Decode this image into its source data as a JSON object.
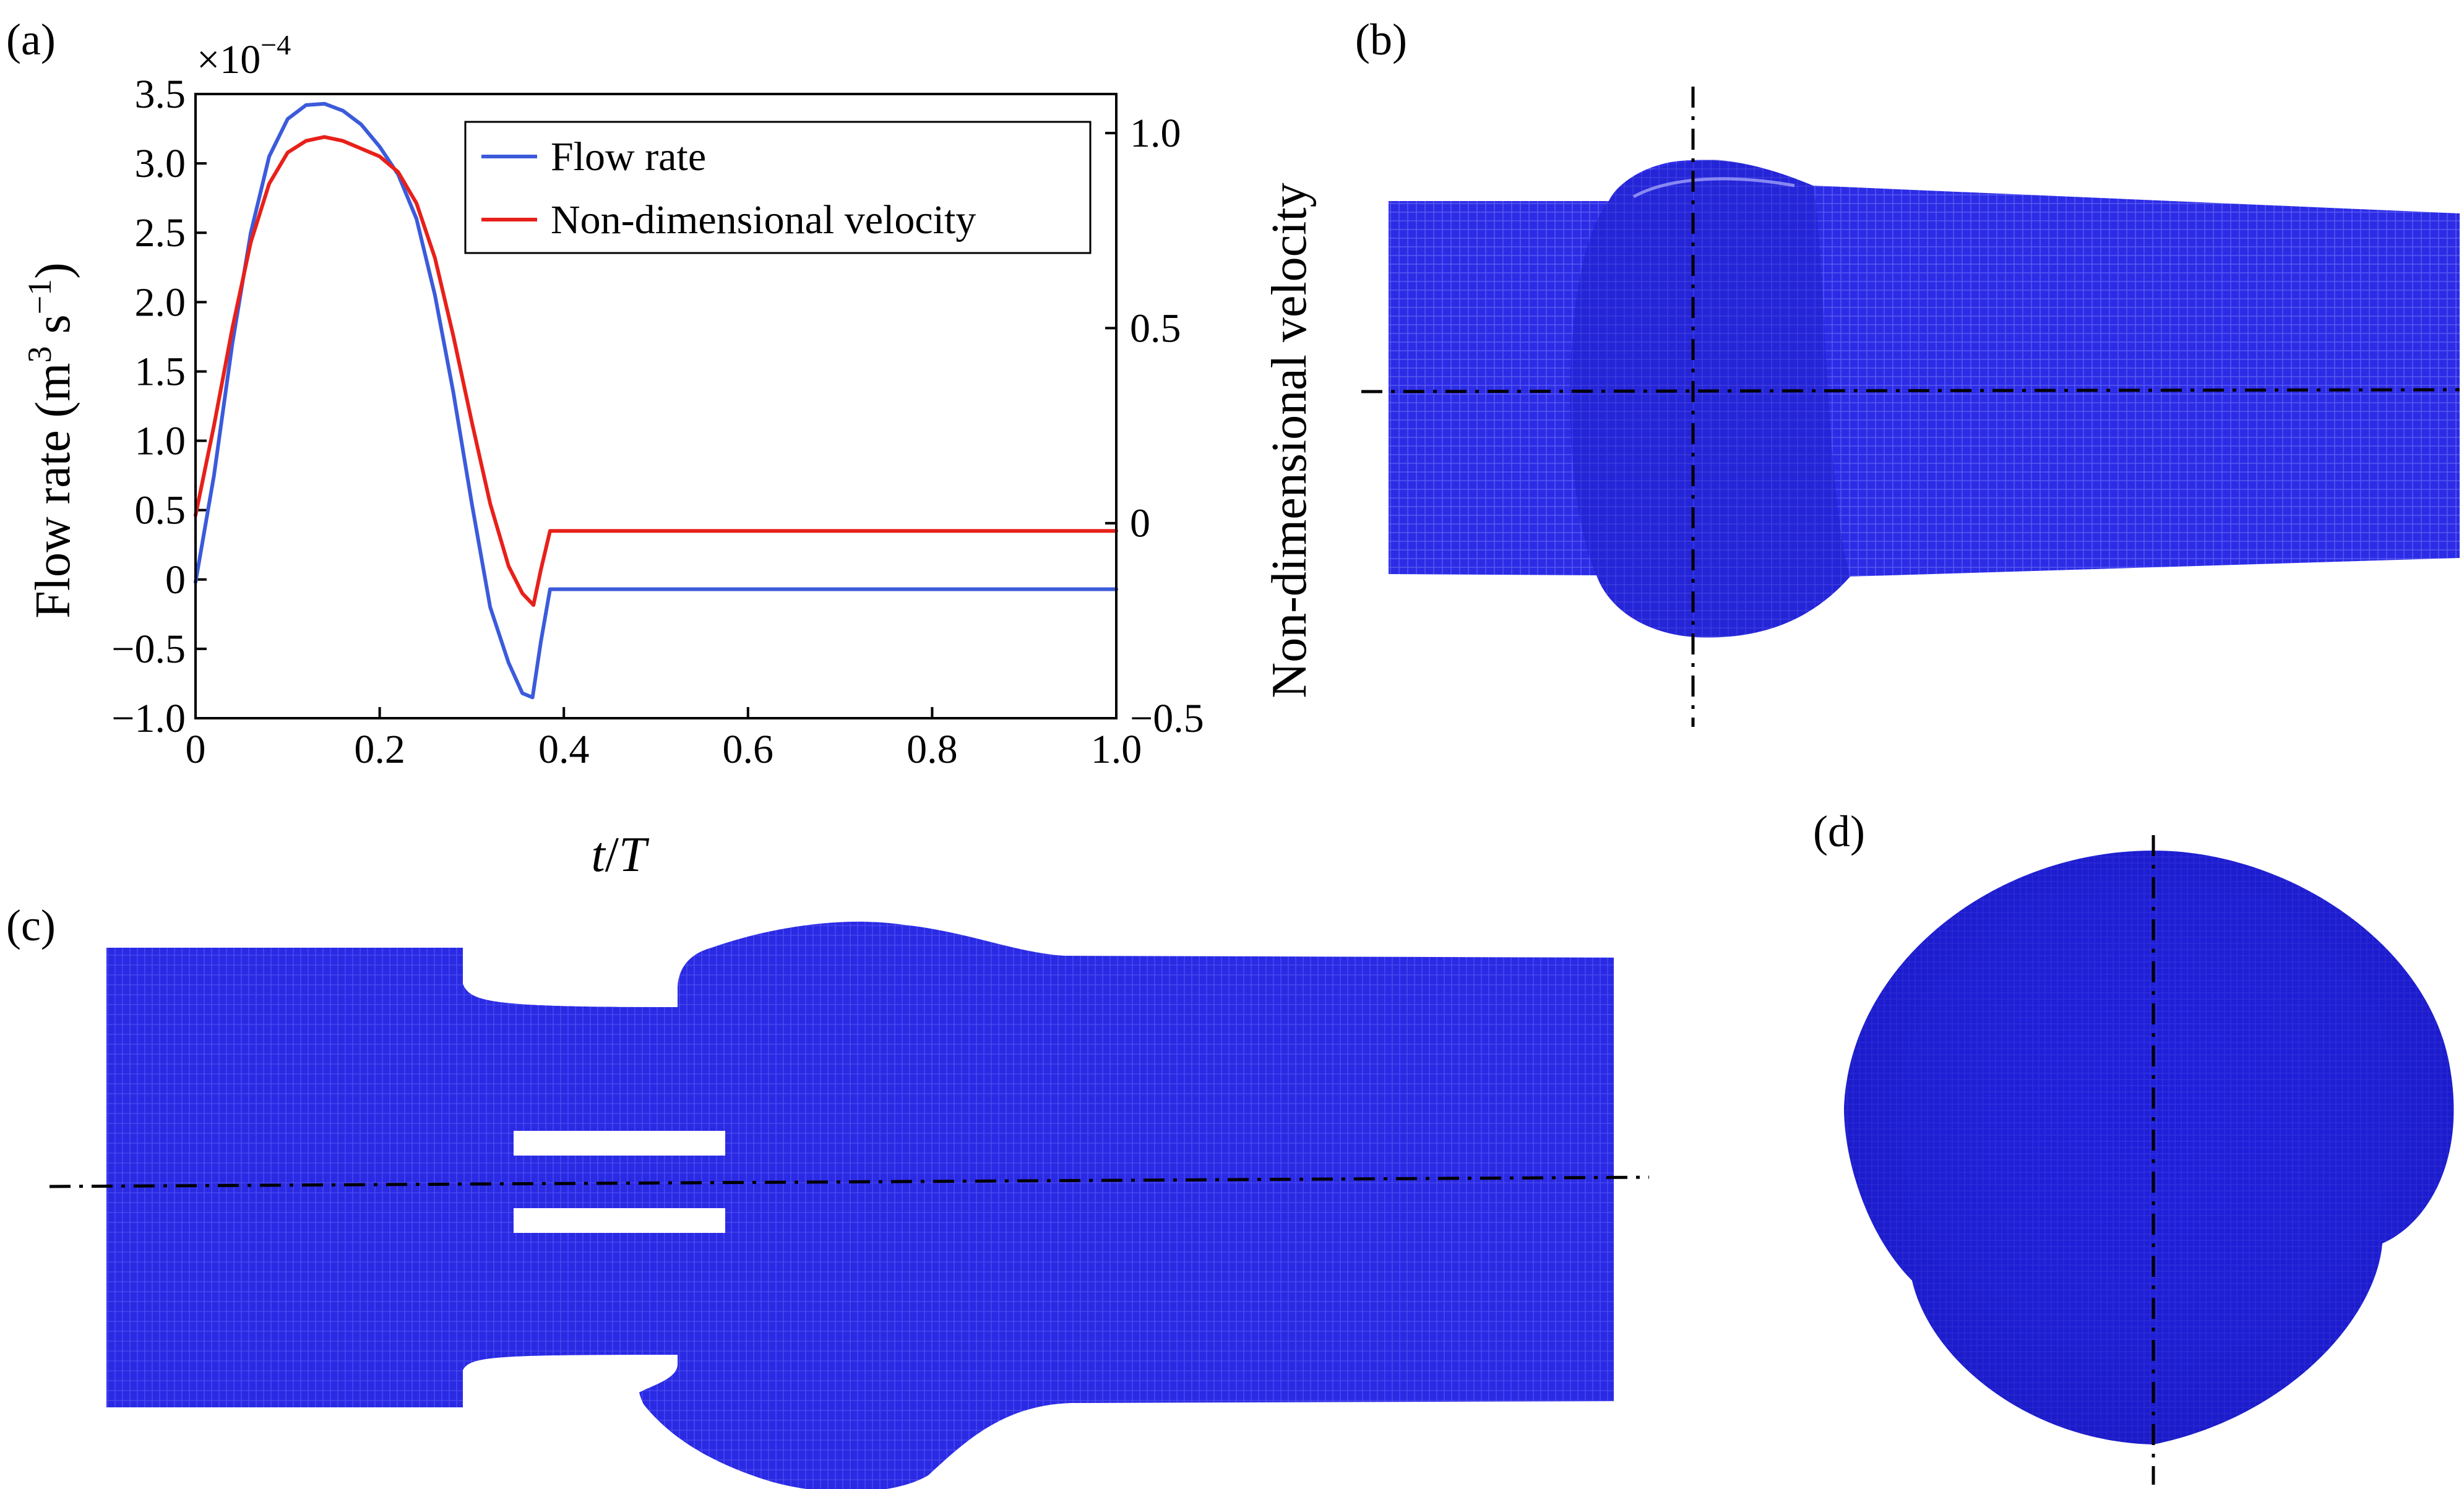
{
  "panels": {
    "a": {
      "label": "(a)"
    },
    "b": {
      "label": "(b)"
    },
    "c": {
      "label": "(c)"
    },
    "d": {
      "label": "(d)"
    }
  },
  "colors": {
    "flow_rate": "#3b5bdb",
    "velocity": "#e8201a",
    "mesh": "#2424e0"
  },
  "chart_data": {
    "type": "line",
    "xlabel_t": "t",
    "xlabel_sep": "/",
    "xlabel_T": "T",
    "ylabel_left_pre": "Flow rate (m",
    "ylabel_left_exp1": "3",
    "ylabel_left_mid": " s",
    "ylabel_left_exp2": "−1",
    "ylabel_left_post": ")",
    "ylabel_right": "Non-dimensional velocity",
    "multiplier_base": "×10",
    "multiplier_exp": "−4",
    "xlim": [
      0,
      1
    ],
    "ylim_left": [
      -1.0,
      3.5
    ],
    "ylim_right": [
      -0.5,
      1.1
    ],
    "xticks": [
      "0",
      "0.2",
      "0.4",
      "0.6",
      "0.8",
      "1.0"
    ],
    "yticks_left": [
      "3.5",
      "3.0",
      "2.5",
      "2.0",
      "1.5",
      "1.0",
      "0.5",
      "0",
      "−0.5",
      "−1.0"
    ],
    "yticks_right": [
      "1.0",
      "0.5",
      "0",
      "−0.5"
    ],
    "legend": [
      "Flow rate",
      "Non-dimensional velocity"
    ],
    "legend_position": "top-right",
    "series": [
      {
        "name": "Flow rate",
        "axis": "left",
        "x": [
          0,
          0.02,
          0.04,
          0.06,
          0.08,
          0.1,
          0.12,
          0.14,
          0.16,
          0.18,
          0.2,
          0.22,
          0.24,
          0.26,
          0.28,
          0.3,
          0.32,
          0.34,
          0.355,
          0.366,
          0.375,
          0.385,
          0.4,
          0.6,
          0.8,
          1.0
        ],
        "y": [
          -0.02,
          0.75,
          1.7,
          2.5,
          3.05,
          3.32,
          3.42,
          3.43,
          3.38,
          3.28,
          3.12,
          2.92,
          2.6,
          2.05,
          1.35,
          0.55,
          -0.2,
          -0.6,
          -0.82,
          -0.85,
          -0.45,
          -0.07,
          -0.07,
          -0.07,
          -0.07,
          -0.07
        ]
      },
      {
        "name": "Non-dimensional velocity",
        "axis": "right",
        "x": [
          0,
          0.02,
          0.04,
          0.06,
          0.08,
          0.1,
          0.12,
          0.14,
          0.16,
          0.18,
          0.2,
          0.22,
          0.24,
          0.26,
          0.28,
          0.3,
          0.32,
          0.34,
          0.355,
          0.367,
          0.375,
          0.385,
          0.4,
          0.6,
          0.8,
          1.0
        ],
        "y": [
          0.02,
          0.25,
          0.5,
          0.72,
          0.87,
          0.95,
          0.98,
          0.99,
          0.98,
          0.96,
          0.94,
          0.9,
          0.82,
          0.68,
          0.48,
          0.26,
          0.05,
          -0.11,
          -0.18,
          -0.21,
          -0.12,
          -0.02,
          -0.02,
          -0.02,
          -0.02,
          -0.02
        ]
      }
    ]
  }
}
